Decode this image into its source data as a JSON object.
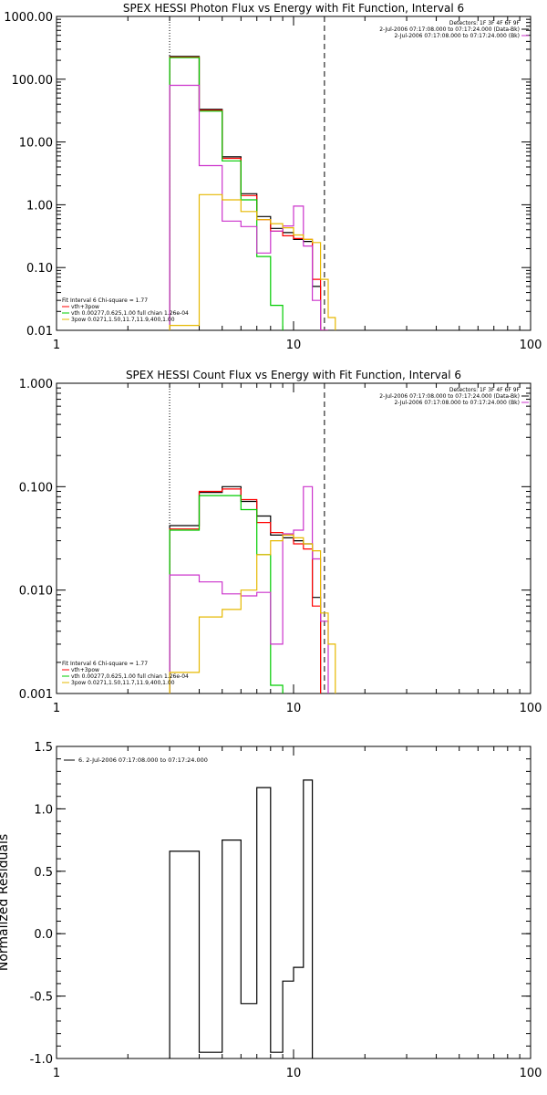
{
  "chart_data": [
    {
      "type": "line",
      "title": "SPEX HESSI Photon Flux vs Energy with Fit Function, Interval 6",
      "xlabel": "",
      "ylabel": "",
      "xscale": "log",
      "yscale": "log",
      "xlim": [
        1,
        100
      ],
      "ylim": [
        0.01,
        1000
      ],
      "xticks": [
        1,
        10,
        100
      ],
      "xtick_labels": [
        "1",
        "10",
        "100"
      ],
      "yticks": [
        0.01,
        0.1,
        1,
        10,
        100,
        1000
      ],
      "ytick_labels": [
        "0.01",
        "0.10",
        "1.00",
        "10.00",
        "100.00",
        "1000.00"
      ],
      "grid": false,
      "vlines": [
        {
          "x": 3.0,
          "style": "dotted"
        },
        {
          "x": 13.5,
          "style": "dashed"
        }
      ],
      "legend_top": [
        "Detectors: 1F 3F 4F 6F 9F",
        "2-Jul-2006 07:17:08.000 to 07:17:24.000 (Data-Bk)",
        "2-Jul-2006 07:17:08.000 to 07:17:24.000 (Bk)"
      ],
      "legend_top_colors": [
        "",
        "#000000",
        "#cc33cc"
      ],
      "legend_bottom": [
        "Fit Interval 6   Chi-square = 1.77",
        "vth+3pow",
        "vth 0.00277,0.625,1.00  full chian 1.26e-04",
        "3pow 0.0271,1.50,11.7,11.9,400,1.00"
      ],
      "legend_bottom_colors": [
        "",
        "#ff0000",
        "#00cc00",
        "#e6b800"
      ],
      "series": [
        {
          "color": "#000000",
          "edges": [
            3.0,
            4.0,
            5.0,
            6.0,
            7.0,
            8.0,
            9.0,
            10.0,
            11.0,
            12.0,
            13.0,
            14.0
          ],
          "values": [
            230,
            33,
            5.8,
            1.5,
            0.65,
            0.42,
            0.36,
            0.28,
            0.26,
            0.05,
            0.008
          ]
        },
        {
          "color": "#ff0000",
          "edges": [
            3.0,
            4.0,
            5.0,
            6.0,
            7.0,
            8.0,
            9.0,
            10.0,
            11.0,
            12.0,
            13.0,
            14.0
          ],
          "values": [
            225,
            32,
            5.5,
            1.4,
            0.58,
            0.38,
            0.32,
            0.29,
            0.28,
            0.065,
            0.008
          ]
        },
        {
          "color": "#00cc00",
          "edges": [
            3.0,
            4.0,
            5.0,
            6.0,
            7.0,
            8.0,
            9.0
          ],
          "values": [
            220,
            31,
            5.0,
            1.2,
            0.15,
            0.025
          ]
        },
        {
          "color": "#cc33cc",
          "edges": [
            3.0,
            4.0,
            5.0,
            6.0,
            7.0,
            8.0,
            9.0,
            10.0,
            11.0,
            12.0,
            13.0,
            14.0
          ],
          "values": [
            80,
            4.2,
            0.55,
            0.45,
            0.17,
            0.38,
            0.46,
            0.95,
            0.22,
            0.03,
            0.008
          ]
        },
        {
          "color": "#e6b800",
          "edges": [
            3.0,
            4.0,
            5.0,
            6.0,
            7.0,
            8.0,
            9.0,
            10.0,
            11.0,
            12.0,
            13.0,
            14.0,
            15.0
          ],
          "values": [
            0.012,
            1.45,
            1.2,
            0.78,
            0.58,
            0.5,
            0.43,
            0.33,
            0.28,
            0.25,
            0.065,
            0.016
          ]
        }
      ]
    },
    {
      "type": "line",
      "title": "SPEX HESSI Count Flux vs Energy with Fit Function, Interval 6",
      "xlabel": "",
      "ylabel": "",
      "xscale": "log",
      "yscale": "log",
      "xlim": [
        1,
        100
      ],
      "ylim": [
        0.001,
        1
      ],
      "xticks": [
        1,
        10,
        100
      ],
      "xtick_labels": [
        "1",
        "10",
        "100"
      ],
      "yticks": [
        0.001,
        0.01,
        0.1,
        1
      ],
      "ytick_labels": [
        "0.001",
        "0.010",
        "0.100",
        "1.000"
      ],
      "grid": false,
      "vlines": [
        {
          "x": 3.0,
          "style": "dotted"
        },
        {
          "x": 13.5,
          "style": "dashed"
        }
      ],
      "legend_top": [
        "Detectors: 1F 3F 4F 6F 9F",
        "2-Jul-2006 07:17:08.000 to 07:17:24.000 (Data-Bk)",
        "2-Jul-2006 07:17:08.000 to 07:17:24.000 (Bk)"
      ],
      "legend_top_colors": [
        "",
        "#000000",
        "#cc33cc"
      ],
      "legend_bottom": [
        "Fit Interval 6   Chi-square = 1.77",
        "vth+3pow",
        "vth 0.00277,0.625,1.00  full chian 1.26e-04",
        "3pow 0.0271,1.50,11.7,11.9,400,1.00"
      ],
      "legend_bottom_colors": [
        "",
        "#ff0000",
        "#00cc00",
        "#e6b800"
      ],
      "series": [
        {
          "color": "#000000",
          "edges": [
            3.0,
            4.0,
            5.0,
            6.0,
            7.0,
            8.0,
            9.0,
            10.0,
            11.0,
            12.0,
            13.0
          ],
          "values": [
            0.042,
            0.088,
            0.1,
            0.072,
            0.052,
            0.034,
            0.032,
            0.03,
            0.028,
            0.0085
          ]
        },
        {
          "color": "#ff0000",
          "edges": [
            3.0,
            4.0,
            5.0,
            6.0,
            7.0,
            8.0,
            9.0,
            10.0,
            11.0,
            12.0,
            13.0
          ],
          "values": [
            0.039,
            0.09,
            0.095,
            0.075,
            0.045,
            0.036,
            0.034,
            0.028,
            0.025,
            0.007
          ]
        },
        {
          "color": "#00cc00",
          "edges": [
            3.0,
            4.0,
            5.0,
            6.0,
            7.0,
            8.0,
            9.0
          ],
          "values": [
            0.038,
            0.082,
            0.082,
            0.06,
            0.022,
            0.0012
          ]
        },
        {
          "color": "#cc33cc",
          "edges": [
            3.0,
            4.0,
            5.0,
            6.0,
            7.0,
            8.0,
            9.0,
            10.0,
            11.0,
            12.0,
            13.0,
            14.0
          ],
          "values": [
            0.014,
            0.012,
            0.0092,
            0.0088,
            0.0095,
            0.003,
            0.035,
            0.038,
            0.1,
            0.02,
            0.005
          ]
        },
        {
          "color": "#e6b800",
          "edges": [
            3.0,
            4.0,
            5.0,
            6.0,
            7.0,
            8.0,
            9.0,
            10.0,
            11.0,
            12.0,
            13.0,
            14.0,
            15.0
          ],
          "values": [
            0.0016,
            0.0055,
            0.0065,
            0.01,
            0.022,
            0.03,
            0.034,
            0.032,
            0.028,
            0.024,
            0.006,
            0.003
          ]
        }
      ]
    },
    {
      "type": "line",
      "title": "",
      "xlabel": "",
      "ylabel": "Normalized Residuals",
      "xscale": "log",
      "yscale": "linear",
      "xlim": [
        1,
        100
      ],
      "ylim": [
        -1.0,
        1.5
      ],
      "xticks": [
        1,
        10,
        100
      ],
      "xtick_labels": [
        "1",
        "10",
        "100"
      ],
      "yticks": [
        -1.0,
        -0.5,
        0.0,
        0.5,
        1.0,
        1.5
      ],
      "ytick_labels": [
        "-1.0",
        "-0.5",
        "0.0",
        "0.5",
        "1.0",
        "1.5"
      ],
      "grid": false,
      "vlines": [],
      "legend_top": [
        "6.  2-Jul-2006 07:17:08.000 to 07:17:24.000"
      ],
      "legend_top_colors": [
        "#000000"
      ],
      "legend_bottom": [],
      "legend_bottom_colors": [],
      "series": [
        {
          "color": "#000000",
          "edges": [
            3.0,
            4.0,
            5.0,
            6.0,
            7.0,
            8.0,
            9.0,
            10.0,
            11.0,
            12.0
          ],
          "values": [
            0.66,
            -0.95,
            0.75,
            -0.56,
            1.17,
            -0.95,
            -0.38,
            -0.27,
            1.23
          ]
        }
      ]
    }
  ]
}
